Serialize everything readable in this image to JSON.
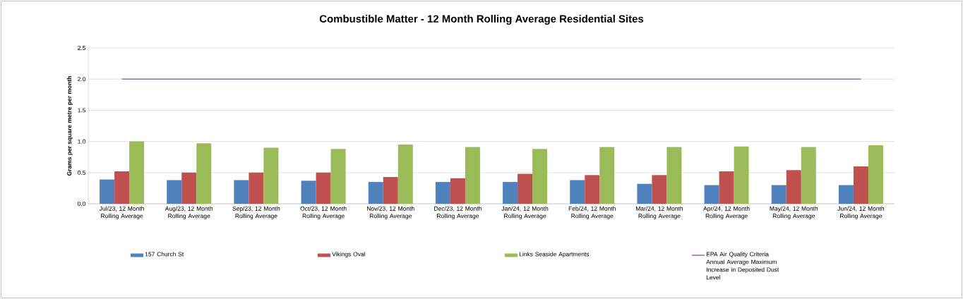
{
  "chart_data": {
    "type": "bar",
    "title": "Combustible Matter - 12 Month Rolling Average Residential Sites",
    "ylabel": "Grams per square metre per month",
    "categories": [
      "Jul/23, 12 Month Rolling Average",
      "Aug/23, 12 Month Rolling Average",
      "Sep/23, 12 Month Rolling Average",
      "Oct/23, 12 Month Rolling Average",
      "Nov/23, 12 Month Rolling Average",
      "Dec/23, 12 Month Rolling Average",
      "Jan/24, 12 Month Rolling Average",
      "Feb/24, 12 Month Rolling Average",
      "Mar/24, 12 Month Rolling Average",
      "Apr/24, 12 Month Rolling Average",
      "May/24, 12 Month Rolling Average",
      "Jun/24, 12 Month Rolling Average"
    ],
    "series": [
      {
        "name": "157 Church St",
        "color": "#4f81bd",
        "values": [
          0.39,
          0.38,
          0.38,
          0.37,
          0.35,
          0.35,
          0.35,
          0.38,
          0.32,
          0.3,
          0.3,
          0.3
        ]
      },
      {
        "name": "Vikings Oval",
        "color": "#c0504d",
        "values": [
          0.52,
          0.5,
          0.5,
          0.5,
          0.43,
          0.41,
          0.48,
          0.46,
          0.46,
          0.52,
          0.54,
          0.6
        ]
      },
      {
        "name": "Links Seaside Apartments",
        "color": "#9bbb59",
        "values": [
          1.0,
          0.97,
          0.9,
          0.88,
          0.95,
          0.91,
          0.88,
          0.91,
          0.91,
          0.92,
          0.91,
          0.94
        ]
      },
      {
        "name": "EPA Air Quality Criteria Annual Average Maximum Increase in Deposited Dust Level",
        "type": "line",
        "color": "#7b52ab",
        "values": [
          2.0,
          2.0,
          2.0,
          2.0,
          2.0,
          2.0,
          2.0,
          2.0,
          2.0,
          2.0,
          2.0,
          2.0
        ]
      }
    ],
    "ylim": [
      0,
      2.5
    ],
    "yticks": [
      {
        "value": 0,
        "label": "0.0"
      },
      {
        "value": 0.5,
        "label": "0.5"
      },
      {
        "value": 1,
        "label": "1.0"
      },
      {
        "value": 1.5,
        "label": "1.5"
      },
      {
        "value": 2,
        "label": "2.0"
      },
      {
        "value": 2.5,
        "label": "2.5"
      }
    ],
    "grid": "y",
    "legend": "bottom"
  }
}
